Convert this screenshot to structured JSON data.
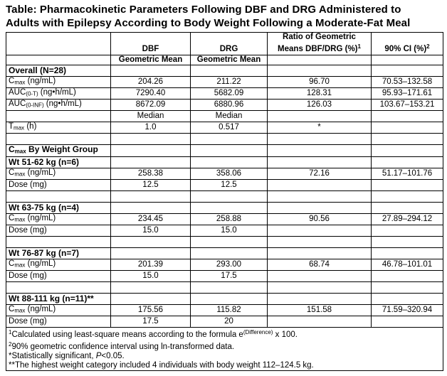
{
  "title": {
    "line1": "Table: Pharmacokinetic Parameters Following DBF and DRG Administered to",
    "line2": "Adults with Epilepsy According to Body Weight Following a Moderate-Fat Meal"
  },
  "table": {
    "header": {
      "dbf": "DBF",
      "drg": "DRG",
      "ratio_line1": "Ratio of Geometric",
      "ratio_line2": [
        {
          "t": "Means DBF/DRG (%)"
        },
        {
          "t": "1",
          "s": "sup"
        }
      ],
      "ci": [
        {
          "t": "90% CI (%)"
        },
        {
          "t": "2",
          "s": "sup"
        }
      ],
      "geometric_mean": "Geometric Mean"
    },
    "rows": [
      {
        "type": "group",
        "label": [
          {
            "t": "Overall (N=28)"
          }
        ],
        "values": [
          "",
          "",
          "",
          ""
        ]
      },
      {
        "type": "data",
        "label": [
          {
            "t": "C"
          },
          {
            "t": "max",
            "s": "sub"
          },
          {
            "t": " (ng/mL)"
          }
        ],
        "values": [
          "204.26",
          "211.22",
          "96.70",
          "70.53–132.58"
        ]
      },
      {
        "type": "data",
        "label": [
          {
            "t": "AUC"
          },
          {
            "t": "(0-T)",
            "s": "sub"
          },
          {
            "t": " (ng•h/mL)"
          }
        ],
        "values": [
          "7290.40",
          "5682.09",
          "128.31",
          "95.93–171.61"
        ]
      },
      {
        "type": "data",
        "label": [
          {
            "t": "AUC"
          },
          {
            "t": "(0-INF)",
            "s": "sub"
          },
          {
            "t": " (ng•h/mL)"
          }
        ],
        "values": [
          "8672.09",
          "6880.96",
          "126.03",
          "103.67–153.21"
        ]
      },
      {
        "type": "data",
        "label": [],
        "values": [
          "Median",
          "Median",
          "",
          ""
        ]
      },
      {
        "type": "data",
        "label": [
          {
            "t": "T"
          },
          {
            "t": "max",
            "s": "sub"
          },
          {
            "t": " (h)"
          }
        ],
        "values": [
          "1.0",
          "0.517",
          "*",
          ""
        ]
      },
      {
        "type": "blank",
        "label": [],
        "values": [
          "",
          "",
          "",
          ""
        ]
      },
      {
        "type": "group",
        "label": [
          {
            "t": "C"
          },
          {
            "t": "max",
            "s": "sub"
          },
          {
            "t": " By Weight Group"
          }
        ],
        "values": [
          "",
          "",
          "",
          ""
        ]
      },
      {
        "type": "group",
        "label": [
          {
            "t": "Wt 51-62 kg (n=6)"
          }
        ],
        "values": [
          "",
          "",
          "",
          ""
        ]
      },
      {
        "type": "data",
        "label": [
          {
            "t": "C"
          },
          {
            "t": "max",
            "s": "sub"
          },
          {
            "t": " (ng/mL)"
          }
        ],
        "values": [
          "258.38",
          "358.06",
          "72.16",
          "51.17–101.76"
        ]
      },
      {
        "type": "data",
        "label": [
          {
            "t": "Dose (mg)"
          }
        ],
        "values": [
          "12.5",
          "12.5",
          "",
          ""
        ]
      },
      {
        "type": "blank",
        "label": [],
        "values": [
          "",
          "",
          "",
          ""
        ]
      },
      {
        "type": "group",
        "label": [
          {
            "t": "Wt 63-75 kg (n=4)"
          }
        ],
        "values": [
          "",
          "",
          "",
          ""
        ]
      },
      {
        "type": "data",
        "label": [
          {
            "t": "C"
          },
          {
            "t": "max",
            "s": "sub"
          },
          {
            "t": " (ng/mL)"
          }
        ],
        "values": [
          "234.45",
          "258.88",
          "90.56",
          "27.89–294.12"
        ]
      },
      {
        "type": "data",
        "label": [
          {
            "t": "Dose (mg)"
          }
        ],
        "values": [
          "15.0",
          "15.0",
          "",
          ""
        ]
      },
      {
        "type": "blank",
        "label": [],
        "values": [
          "",
          "",
          "",
          ""
        ]
      },
      {
        "type": "group",
        "label": [
          {
            "t": "Wt 76-87 kg (n=7)"
          }
        ],
        "values": [
          "",
          "",
          "",
          ""
        ]
      },
      {
        "type": "data",
        "label": [
          {
            "t": "C"
          },
          {
            "t": "max",
            "s": "sub"
          },
          {
            "t": " (ng/mL)"
          }
        ],
        "values": [
          "201.39",
          "293.00",
          "68.74",
          "46.78–101.01"
        ]
      },
      {
        "type": "data",
        "label": [
          {
            "t": "Dose (mg)"
          }
        ],
        "values": [
          "15.0",
          "17.5",
          "",
          ""
        ]
      },
      {
        "type": "blank",
        "label": [],
        "values": [
          "",
          "",
          "",
          ""
        ]
      },
      {
        "type": "group",
        "label": [
          {
            "t": "Wt 88-111 kg (n=11)**"
          }
        ],
        "values": [
          "",
          "",
          "",
          ""
        ]
      },
      {
        "type": "data",
        "label": [
          {
            "t": "C"
          },
          {
            "t": "max",
            "s": "sub"
          },
          {
            "t": " (ng/mL)"
          }
        ],
        "values": [
          "175.56",
          "115.82",
          "151.58",
          "71.59–320.94"
        ]
      },
      {
        "type": "data",
        "label": [
          {
            "t": "Dose (mg)"
          }
        ],
        "values": [
          "17.5",
          "20",
          "",
          ""
        ]
      }
    ],
    "footnotes": [
      [
        {
          "t": "1",
          "s": "sup"
        },
        {
          "t": "Calculated using least-square means according to the formula e"
        },
        {
          "t": "(Difference)",
          "s": "sup"
        },
        {
          "t": " x 100."
        }
      ],
      [
        {
          "t": "2",
          "s": "sup"
        },
        {
          "t": "90% geometric confidence interval using ln-transformed data."
        }
      ],
      [
        {
          "t": "*Statistically significant, "
        },
        {
          "t": "P",
          "s": "i"
        },
        {
          "t": "<0.05."
        }
      ],
      [
        {
          "t": "**The highest weight category included 4 individuals with body weight 112–124.5 kg."
        }
      ]
    ]
  },
  "colors": {
    "text": "#000000",
    "border": "#000000",
    "background": "#ffffff"
  }
}
